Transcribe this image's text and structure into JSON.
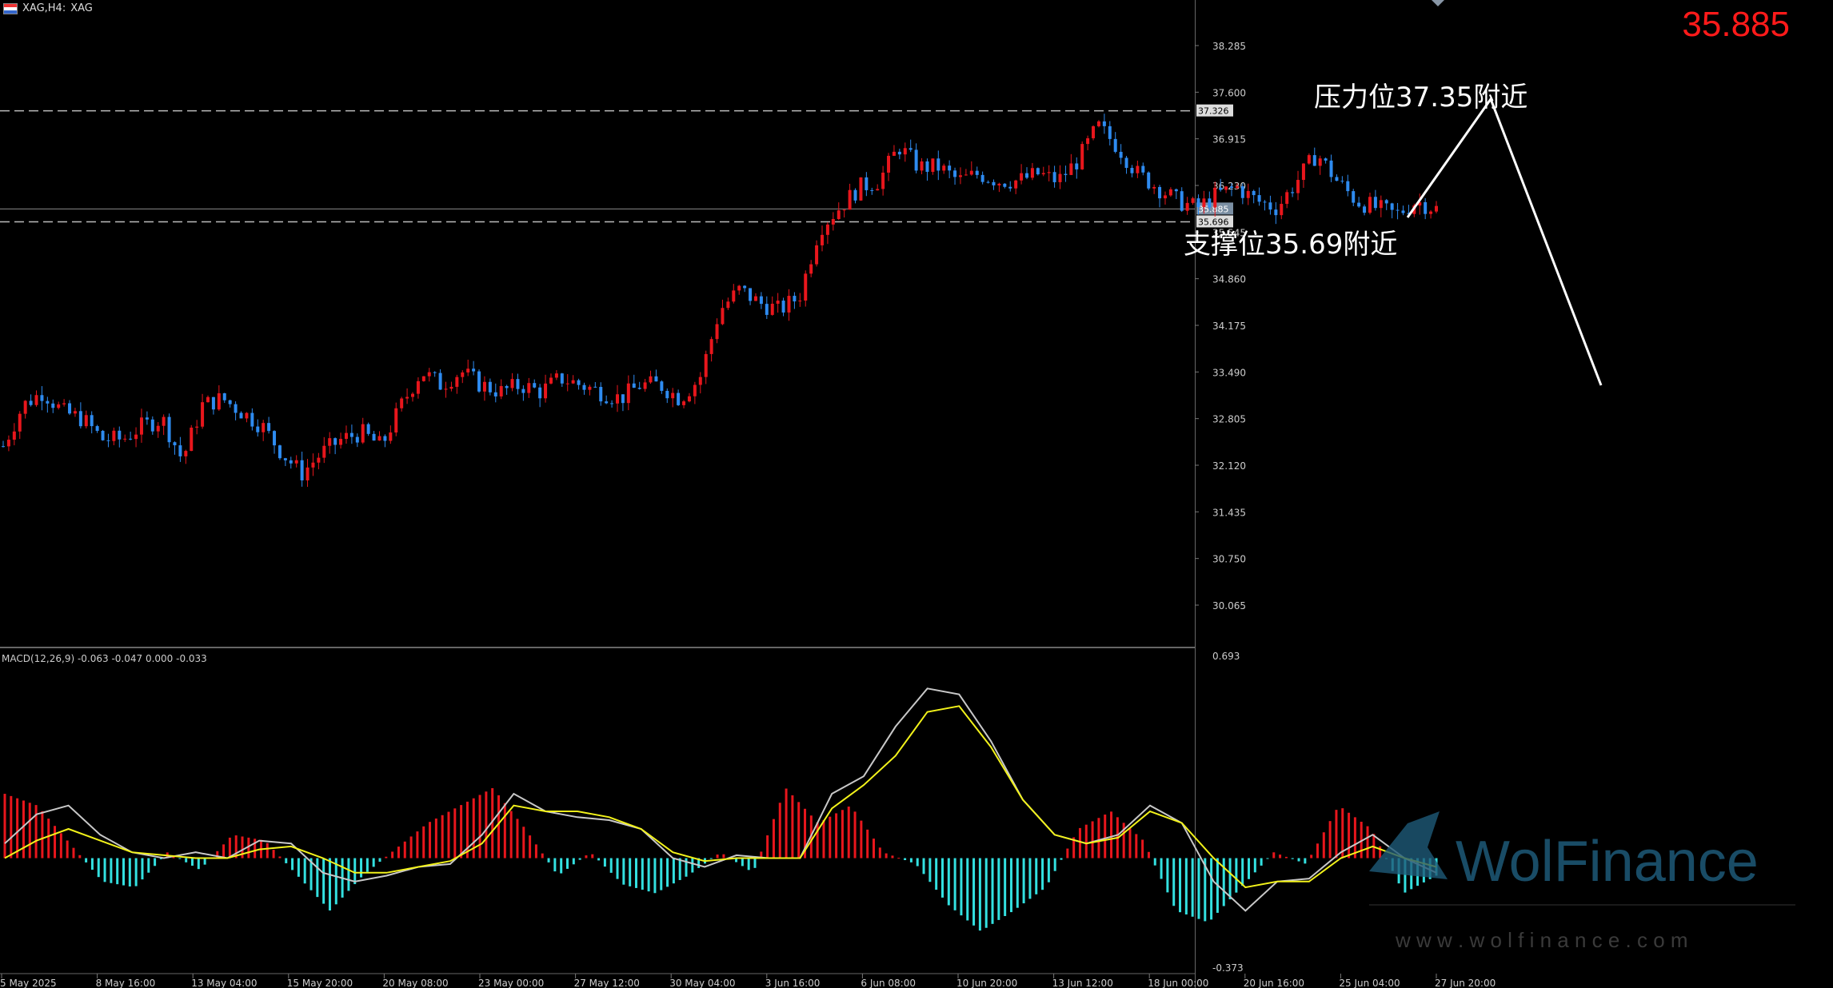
{
  "header": {
    "symbol_label": "XAG,H4:",
    "symbol": "XAG"
  },
  "current_price": "35.885",
  "annotations": {
    "resistance": "压力位37.35附近",
    "support": "支撑位35.69附近"
  },
  "price_tags": {
    "resistance": "37.326",
    "current": "35.885",
    "support": "35.696"
  },
  "macd_label": "MACD(12,26,9) -0.063 -0.047 0.000 -0.033",
  "macd_axis": {
    "top": "0.693",
    "bottom": "-0.373"
  },
  "watermark": {
    "brand": "WolFinance",
    "url": "w w w . w o l f i n a n c e . c o m"
  },
  "colors": {
    "up": "#e8161c",
    "down": "#2e8bf0",
    "hist_pos": "#e8161c",
    "hist_neg": "#33e0e0",
    "macd": "#c8c8c8",
    "signal": "#f2f21a"
  },
  "chart_data": {
    "type": "candlestick",
    "timeframe": "H4",
    "y_ticks": [
      "38.285",
      "37.600",
      "36.915",
      "36.230",
      "35.545",
      "34.860",
      "34.175",
      "33.490",
      "32.805",
      "32.120",
      "31.435",
      "30.750",
      "30.065"
    ],
    "x_ticks": [
      "5 May 2025",
      "8 May 16:00",
      "13 May 04:00",
      "15 May 20:00",
      "20 May 08:00",
      "23 May 00:00",
      "27 May 12:00",
      "30 May 04:00",
      "3 Jun 16:00",
      "6 Jun 08:00",
      "10 Jun 20:00",
      "13 Jun 12:00",
      "18 Jun 00:00",
      "20 Jun 16:00",
      "25 Jun 04:00",
      "27 Jun 20:00"
    ],
    "ylim": [
      29.6,
      38.7
    ],
    "levels": {
      "resistance": 37.326,
      "support": 35.696,
      "current": 35.885
    },
    "close_path": [
      32.4,
      33.0,
      33.2,
      32.9,
      32.8,
      32.5,
      32.5,
      32.7,
      32.8,
      32.2,
      33.0,
      33.1,
      32.9,
      32.7,
      32.3,
      32.0,
      32.3,
      32.5,
      32.6,
      32.4,
      33.0,
      33.5,
      33.3,
      33.5,
      33.3,
      33.2,
      33.3,
      33.2,
      33.4,
      33.3,
      33.2,
      33.1,
      33.3,
      33.3,
      33.1,
      33.4,
      34.4,
      34.7,
      34.5,
      34.4,
      34.6,
      35.6,
      35.9,
      36.2,
      36.3,
      36.8,
      36.5,
      36.5,
      36.3,
      36.4,
      36.3,
      36.3,
      36.4,
      36.3,
      36.6,
      37.1,
      36.8,
      36.4,
      36.2,
      36.0,
      35.9,
      36.1,
      36.2,
      36.0,
      35.9,
      36.3,
      36.7,
      36.3,
      36.0,
      35.9,
      35.8,
      36.0,
      35.885
    ],
    "macd_ylim": [
      -0.373,
      0.693
    ],
    "macd_line": [
      0.05,
      0.15,
      0.18,
      0.08,
      0.02,
      0.0,
      0.02,
      0.0,
      0.06,
      0.05,
      -0.05,
      -0.08,
      -0.06,
      -0.03,
      -0.02,
      0.08,
      0.22,
      0.16,
      0.14,
      0.13,
      0.1,
      0.0,
      -0.03,
      0.01,
      0.0,
      0.0,
      0.22,
      0.28,
      0.45,
      0.58,
      0.56,
      0.4,
      0.2,
      0.08,
      0.05,
      0.08,
      0.18,
      0.12,
      -0.08,
      -0.18,
      -0.08,
      -0.07,
      0.02,
      0.08,
      0.0,
      -0.05
    ],
    "signal_line": [
      0.0,
      0.06,
      0.1,
      0.06,
      0.02,
      0.01,
      0.0,
      0.0,
      0.03,
      0.04,
      0.0,
      -0.05,
      -0.05,
      -0.03,
      -0.01,
      0.05,
      0.18,
      0.16,
      0.16,
      0.14,
      0.1,
      0.02,
      -0.01,
      0.0,
      0.0,
      0.0,
      0.17,
      0.25,
      0.35,
      0.5,
      0.52,
      0.38,
      0.2,
      0.08,
      0.05,
      0.07,
      0.16,
      0.12,
      0.0,
      -0.1,
      -0.08,
      -0.08,
      0.0,
      0.04,
      0.0,
      -0.03
    ],
    "histogram": [
      0.22,
      0.18,
      0.05,
      -0.08,
      -0.1,
      0.02,
      -0.04,
      0.08,
      0.06,
      -0.06,
      -0.18,
      -0.06,
      0.03,
      0.12,
      0.18,
      0.24,
      0.1,
      -0.06,
      0.02,
      -0.09,
      -0.12,
      -0.06,
      0.02,
      -0.05,
      0.24,
      0.12,
      0.18,
      0.02,
      -0.02,
      -0.16,
      -0.25,
      -0.18,
      -0.1,
      0.1,
      0.16,
      0.06,
      -0.18,
      -0.22,
      -0.1,
      0.02,
      -0.02,
      0.18,
      0.1,
      -0.12,
      -0.06
    ]
  }
}
